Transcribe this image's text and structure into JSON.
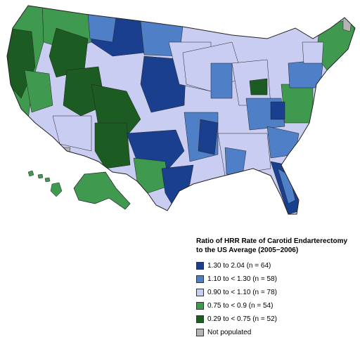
{
  "legend": {
    "title_line1": "Ratio of HRR Rate of Carotid Endarterectomy",
    "title_line2": "to the US Average (2005−2006)",
    "items": [
      {
        "label": "1.30 to 2.04 (n = 64)",
        "color": "#1a3f8f"
      },
      {
        "label": "1.10 to < 1.30 (n = 58)",
        "color": "#4f7fc6"
      },
      {
        "label": "0.90 to < 1.10 (n = 78)",
        "color": "#c9cdf2"
      },
      {
        "label": "0.75 to < 0.9 (n = 54)",
        "color": "#3f9a50"
      },
      {
        "label": "0.29 to < 0.75 (n = 52)",
        "color": "#1c5c22"
      },
      {
        "label": "Not populated",
        "color": "#b4b4b4"
      }
    ]
  }
}
